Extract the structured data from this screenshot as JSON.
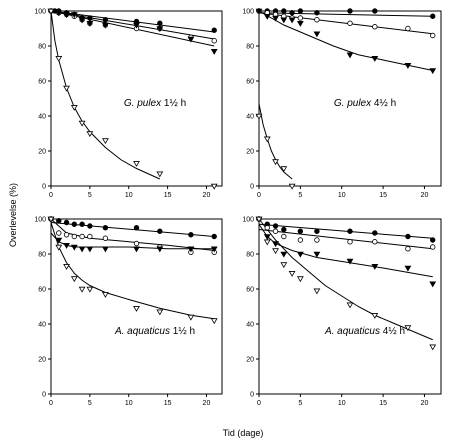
{
  "figure": {
    "ylabel": "Overlevelse (%)",
    "xlabel": "Tid (dage)"
  },
  "chart_data": [
    {
      "type": "scatter",
      "title_species": "G. pulex",
      "title_rest": "1½ h",
      "xlim": [
        0,
        22
      ],
      "ylim": [
        0,
        100
      ],
      "xticks": [
        0,
        5,
        10,
        15,
        20
      ],
      "yticks": [
        0,
        20,
        40,
        60,
        80,
        100
      ],
      "grid": false,
      "series": [
        {
          "marker": "filled-circle",
          "points": [
            [
              0,
              100
            ],
            [
              0.5,
              100
            ],
            [
              1,
              100
            ],
            [
              2,
              99
            ],
            [
              3,
              98
            ],
            [
              4,
              96
            ],
            [
              5,
              96
            ],
            [
              7,
              95
            ],
            [
              11,
              94
            ],
            [
              14,
              93
            ],
            [
              21,
              89
            ]
          ],
          "fit": [
            [
              0,
              100
            ],
            [
              21,
              88
            ]
          ]
        },
        {
          "marker": "open-circle",
          "points": [
            [
              0,
              100
            ],
            [
              1,
              99
            ],
            [
              2,
              98
            ],
            [
              3,
              97
            ],
            [
              4,
              95
            ],
            [
              5,
              93
            ],
            [
              7,
              92
            ],
            [
              11,
              90
            ],
            [
              14,
              90
            ],
            [
              18,
              85
            ],
            [
              21,
              83
            ]
          ],
          "fit": [
            [
              0,
              100
            ],
            [
              21,
              84
            ]
          ]
        },
        {
          "marker": "filled-triangle",
          "points": [
            [
              0,
              100
            ],
            [
              1,
              99
            ],
            [
              2,
              98
            ],
            [
              3,
              98
            ],
            [
              4,
              95
            ],
            [
              5,
              93
            ],
            [
              7,
              92
            ],
            [
              11,
              92
            ],
            [
              14,
              90
            ],
            [
              18,
              84
            ],
            [
              21,
              77
            ]
          ],
          "fit": [
            [
              0,
              100
            ],
            [
              21,
              80
            ]
          ]
        },
        {
          "marker": "open-triangle",
          "points": [
            [
              0,
              100
            ],
            [
              1,
              73
            ],
            [
              2,
              56
            ],
            [
              3,
              45
            ],
            [
              4,
              36
            ],
            [
              5,
              30
            ],
            [
              7,
              26
            ],
            [
              11,
              13
            ],
            [
              14,
              7
            ],
            [
              21,
              0
            ]
          ],
          "fit": [
            [
              0,
              100
            ],
            [
              0.5,
              83
            ],
            [
              1,
              72
            ],
            [
              2,
              56
            ],
            [
              3,
              45
            ],
            [
              4,
              37
            ],
            [
              5,
              31
            ],
            [
              7,
              22
            ],
            [
              9,
              15
            ],
            [
              11,
              10
            ],
            [
              13,
              6
            ],
            [
              14,
              4
            ]
          ]
        }
      ]
    },
    {
      "type": "scatter",
      "title_species": "G. pulex",
      "title_rest": "4½ h",
      "xlim": [
        0,
        22
      ],
      "ylim": [
        0,
        100
      ],
      "xticks": [
        0,
        5,
        10,
        15,
        20
      ],
      "yticks": [
        0,
        20,
        40,
        60,
        80,
        100
      ],
      "grid": false,
      "series": [
        {
          "marker": "filled-circle",
          "points": [
            [
              0,
              100
            ],
            [
              1,
              100
            ],
            [
              2,
              100
            ],
            [
              3,
              100
            ],
            [
              4,
              99
            ],
            [
              5,
              100
            ],
            [
              7,
              99
            ],
            [
              11,
              100
            ],
            [
              14,
              100
            ],
            [
              21,
              97
            ]
          ],
          "fit": [
            [
              0,
              99
            ],
            [
              21,
              97
            ]
          ]
        },
        {
          "marker": "open-circle",
          "points": [
            [
              0,
              100
            ],
            [
              1,
              99
            ],
            [
              2,
              98
            ],
            [
              3,
              97
            ],
            [
              4,
              96
            ],
            [
              5,
              96
            ],
            [
              7,
              95
            ],
            [
              11,
              93
            ],
            [
              14,
              91
            ],
            [
              18,
              90
            ],
            [
              21,
              86
            ]
          ],
          "fit": [
            [
              0,
              99
            ],
            [
              21,
              87
            ]
          ]
        },
        {
          "marker": "filled-triangle",
          "points": [
            [
              0,
              100
            ],
            [
              1,
              97
            ],
            [
              2,
              96
            ],
            [
              3,
              95
            ],
            [
              4,
              95
            ],
            [
              5,
              93
            ],
            [
              7,
              87
            ],
            [
              11,
              75
            ],
            [
              14,
              73
            ],
            [
              18,
              69
            ],
            [
              21,
              66
            ]
          ],
          "fit": [
            [
              0,
              100
            ],
            [
              3,
              92
            ],
            [
              6,
              86
            ],
            [
              9,
              80
            ],
            [
              12,
              75
            ],
            [
              15,
              72
            ],
            [
              18,
              69
            ],
            [
              21,
              66
            ]
          ]
        },
        {
          "marker": "open-triangle",
          "points": [
            [
              0,
              40
            ],
            [
              1,
              27
            ],
            [
              2,
              14
            ],
            [
              3,
              10
            ],
            [
              4,
              0
            ]
          ],
          "fit": [
            [
              0,
              47
            ],
            [
              0.5,
              35
            ],
            [
              1,
              27
            ],
            [
              1.5,
              20
            ],
            [
              2,
              15
            ],
            [
              2.5,
              11
            ],
            [
              3,
              8
            ],
            [
              3.5,
              6
            ],
            [
              4,
              4
            ]
          ]
        }
      ]
    },
    {
      "type": "scatter",
      "title_species": "A. aquaticus",
      "title_rest": "1½ h",
      "xlim": [
        0,
        22
      ],
      "ylim": [
        0,
        100
      ],
      "xticks": [
        0,
        5,
        10,
        15,
        20
      ],
      "yticks": [
        0,
        20,
        40,
        60,
        80,
        100
      ],
      "grid": false,
      "series": [
        {
          "marker": "filled-circle",
          "points": [
            [
              0,
              100
            ],
            [
              1,
              99
            ],
            [
              2,
              98
            ],
            [
              3,
              97
            ],
            [
              4,
              97
            ],
            [
              5,
              96
            ],
            [
              7,
              95
            ],
            [
              11,
              95
            ],
            [
              14,
              93
            ],
            [
              18,
              91
            ],
            [
              21,
              90
            ]
          ],
          "fit": [
            [
              0,
              98
            ],
            [
              21,
              90
            ]
          ]
        },
        {
          "marker": "open-circle",
          "points": [
            [
              0,
              100
            ],
            [
              1,
              92
            ],
            [
              2,
              91
            ],
            [
              3,
              90
            ],
            [
              4,
              90
            ],
            [
              5,
              90
            ],
            [
              7,
              89
            ],
            [
              11,
              86
            ],
            [
              14,
              84
            ],
            [
              18,
              81
            ],
            [
              21,
              81
            ]
          ],
          "fit": [
            [
              0,
              100
            ],
            [
              2,
              92
            ],
            [
              5,
              89
            ],
            [
              10,
              87
            ],
            [
              15,
              85
            ],
            [
              21,
              82
            ]
          ]
        },
        {
          "marker": "filled-triangle",
          "points": [
            [
              0,
              100
            ],
            [
              1,
              88
            ],
            [
              2,
              85
            ],
            [
              3,
              84
            ],
            [
              4,
              83
            ],
            [
              5,
              83
            ],
            [
              7,
              83
            ],
            [
              11,
              83
            ],
            [
              14,
              83
            ],
            [
              18,
              83
            ],
            [
              21,
              83
            ]
          ],
          "fit": [
            [
              0,
              92
            ],
            [
              1,
              87
            ],
            [
              2,
              85
            ],
            [
              3,
              84
            ],
            [
              5,
              84
            ],
            [
              10,
              84
            ],
            [
              15,
              83
            ],
            [
              21,
              83
            ]
          ]
        },
        {
          "marker": "open-triangle",
          "points": [
            [
              0,
              100
            ],
            [
              1,
              84
            ],
            [
              2,
              73
            ],
            [
              3,
              66
            ],
            [
              4,
              60
            ],
            [
              5,
              60
            ],
            [
              7,
              57
            ],
            [
              11,
              49
            ],
            [
              14,
              47
            ],
            [
              18,
              44
            ],
            [
              21,
              42
            ]
          ],
          "fit": [
            [
              0,
              98
            ],
            [
              1,
              84
            ],
            [
              2,
              75
            ],
            [
              3,
              69
            ],
            [
              4,
              65
            ],
            [
              5,
              62
            ],
            [
              7,
              58
            ],
            [
              10,
              54
            ],
            [
              14,
              49
            ],
            [
              18,
              45
            ],
            [
              21,
              43
            ]
          ]
        }
      ]
    },
    {
      "type": "scatter",
      "title_species": "A. aquaticus",
      "title_rest": "4½ h",
      "xlim": [
        0,
        22
      ],
      "ylim": [
        0,
        100
      ],
      "xticks": [
        0,
        5,
        10,
        15,
        20
      ],
      "yticks": [
        0,
        20,
        40,
        60,
        80,
        100
      ],
      "grid": false,
      "series": [
        {
          "marker": "filled-circle",
          "points": [
            [
              0,
              100
            ],
            [
              1,
              97
            ],
            [
              2,
              96
            ],
            [
              3,
              94
            ],
            [
              5,
              93
            ],
            [
              7,
              93
            ],
            [
              11,
              93
            ],
            [
              14,
              92
            ],
            [
              18,
              90
            ],
            [
              21,
              88
            ]
          ],
          "fit": [
            [
              0,
              97
            ],
            [
              21,
              89
            ]
          ]
        },
        {
          "marker": "open-circle",
          "points": [
            [
              0,
              100
            ],
            [
              1,
              95
            ],
            [
              2,
              93
            ],
            [
              3,
              90
            ],
            [
              5,
              88
            ],
            [
              7,
              88
            ],
            [
              11,
              87
            ],
            [
              14,
              87
            ],
            [
              18,
              83
            ],
            [
              21,
              84
            ]
          ],
          "fit": [
            [
              0,
              94
            ],
            [
              21,
              83
            ]
          ]
        },
        {
          "marker": "filled-triangle",
          "points": [
            [
              0,
              100
            ],
            [
              1,
              90
            ],
            [
              2,
              86
            ],
            [
              3,
              80
            ],
            [
              5,
              80
            ],
            [
              7,
              80
            ],
            [
              11,
              76
            ],
            [
              14,
              73
            ],
            [
              18,
              72
            ],
            [
              21,
              63
            ]
          ],
          "fit": [
            [
              0,
              97
            ],
            [
              1,
              90
            ],
            [
              2,
              86
            ],
            [
              4,
              82
            ],
            [
              7,
              78
            ],
            [
              11,
              75
            ],
            [
              15,
              72
            ],
            [
              21,
              67
            ]
          ]
        },
        {
          "marker": "open-triangle",
          "points": [
            [
              0,
              100
            ],
            [
              1,
              87
            ],
            [
              2,
              82
            ],
            [
              3,
              74
            ],
            [
              4,
              69
            ],
            [
              5,
              66
            ],
            [
              7,
              59
            ],
            [
              11,
              51
            ],
            [
              14,
              45
            ],
            [
              18,
              38
            ],
            [
              21,
              27
            ]
          ],
          "fit": [
            [
              0,
              100
            ],
            [
              2,
              88
            ],
            [
              4,
              78
            ],
            [
              6,
              70
            ],
            [
              8,
              62
            ],
            [
              10,
              56
            ],
            [
              12,
              50
            ],
            [
              14,
              45
            ],
            [
              16,
              41
            ],
            [
              18,
              37
            ],
            [
              21,
              31
            ]
          ]
        }
      ]
    }
  ]
}
